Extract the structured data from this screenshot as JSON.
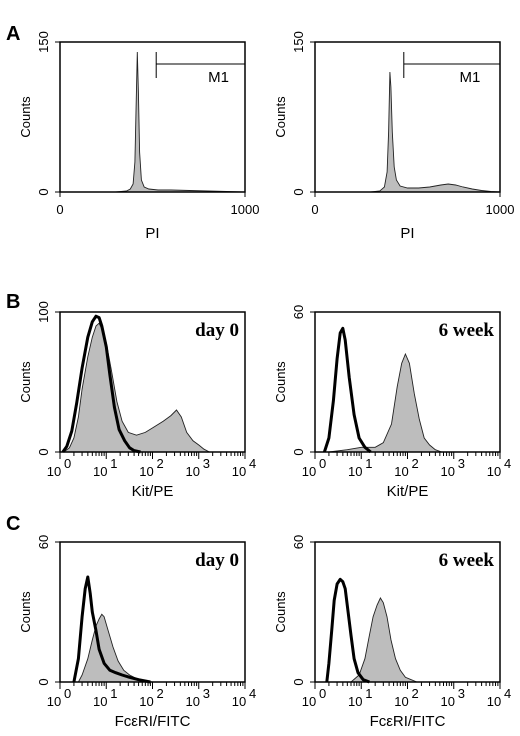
{
  "panel_letters": [
    "A",
    "B",
    "C"
  ],
  "chart_data": [
    {
      "id": "A1",
      "panel": "A",
      "type": "area",
      "xlabel": "PI",
      "ylabel": "Counts",
      "xscale": "linear",
      "xlim": [
        0,
        1000
      ],
      "ylim": [
        0,
        150
      ],
      "xticks": [
        "0",
        "1000"
      ],
      "yticks": [
        "0",
        "150"
      ],
      "gate": {
        "label": "M1",
        "x_start": 520,
        "x_end": 1000,
        "y": 128
      },
      "series": [
        {
          "style": "filled",
          "points": [
            [
              0,
              0
            ],
            [
              300,
              0
            ],
            [
              360,
              1
            ],
            [
              380,
              3
            ],
            [
              395,
              8
            ],
            [
              405,
              30
            ],
            [
              412,
              90
            ],
            [
              418,
              140
            ],
            [
              424,
              100
            ],
            [
              430,
              40
            ],
            [
              440,
              12
            ],
            [
              455,
              5
            ],
            [
              480,
              3
            ],
            [
              530,
              2
            ],
            [
              600,
              2
            ],
            [
              700,
              1.5
            ],
            [
              800,
              1
            ],
            [
              900,
              0.5
            ],
            [
              1000,
              0
            ]
          ]
        }
      ]
    },
    {
      "id": "A2",
      "panel": "A",
      "type": "area",
      "xlabel": "PI",
      "ylabel": "Counts",
      "xscale": "linear",
      "xlim": [
        0,
        1000
      ],
      "ylim": [
        0,
        150
      ],
      "xticks": [
        "0",
        "1000"
      ],
      "yticks": [
        "0",
        "150"
      ],
      "gate": {
        "label": "M1",
        "x_start": 480,
        "x_end": 1000,
        "y": 128
      },
      "series": [
        {
          "style": "filled",
          "points": [
            [
              0,
              0
            ],
            [
              300,
              0
            ],
            [
              350,
              1
            ],
            [
              375,
              5
            ],
            [
              390,
              20
            ],
            [
              398,
              60
            ],
            [
              405,
              120
            ],
            [
              410,
              105
            ],
            [
              418,
              60
            ],
            [
              428,
              25
            ],
            [
              440,
              12
            ],
            [
              460,
              6
            ],
            [
              500,
              4
            ],
            [
              560,
              4
            ],
            [
              620,
              5
            ],
            [
              680,
              7
            ],
            [
              720,
              8
            ],
            [
              760,
              7
            ],
            [
              800,
              5
            ],
            [
              850,
              3
            ],
            [
              900,
              1.5
            ],
            [
              950,
              0.5
            ],
            [
              1000,
              0
            ]
          ]
        }
      ]
    },
    {
      "id": "B1",
      "panel": "B",
      "type": "area",
      "xlabel": "Kit/PE",
      "ylabel": "Counts",
      "annotation": "day 0",
      "xscale": "log",
      "xlim": [
        1,
        10000
      ],
      "ylim": [
        0,
        100
      ],
      "xtick_bases": [
        "10",
        "10",
        "10",
        "10",
        "10"
      ],
      "xtick_exps": [
        "0",
        "1",
        "2",
        "3",
        "4"
      ],
      "yticks": [
        "0",
        "100"
      ],
      "series": [
        {
          "style": "filled",
          "points": [
            [
              1.2,
              0
            ],
            [
              1.6,
              3
            ],
            [
              2,
              10
            ],
            [
              2.5,
              25
            ],
            [
              3,
              45
            ],
            [
              4,
              68
            ],
            [
              5,
              82
            ],
            [
              6,
              90
            ],
            [
              7,
              92
            ],
            [
              8,
              88
            ],
            [
              10,
              78
            ],
            [
              13,
              58
            ],
            [
              17,
              36
            ],
            [
              22,
              22
            ],
            [
              30,
              14
            ],
            [
              45,
              12
            ],
            [
              70,
              14
            ],
            [
              110,
              18
            ],
            [
              170,
              22
            ],
            [
              250,
              26
            ],
            [
              330,
              30
            ],
            [
              420,
              25
            ],
            [
              550,
              14
            ],
            [
              750,
              8
            ],
            [
              1000,
              5
            ],
            [
              1300,
              2
            ],
            [
              1700,
              0
            ]
          ]
        },
        {
          "style": "outline",
          "points": [
            [
              1.15,
              0
            ],
            [
              1.4,
              4
            ],
            [
              1.8,
              15
            ],
            [
              2.3,
              35
            ],
            [
              3,
              60
            ],
            [
              4,
              82
            ],
            [
              5,
              93
            ],
            [
              6,
              97
            ],
            [
              7,
              96
            ],
            [
              8,
              90
            ],
            [
              10,
              75
            ],
            [
              12,
              55
            ],
            [
              15,
              32
            ],
            [
              19,
              16
            ],
            [
              25,
              8
            ],
            [
              32,
              3
            ],
            [
              40,
              1
            ],
            [
              55,
              0
            ]
          ]
        }
      ]
    },
    {
      "id": "B2",
      "panel": "B",
      "type": "area",
      "xlabel": "Kit/PE",
      "ylabel": "Counts",
      "annotation": "6 week",
      "xscale": "log",
      "xlim": [
        1,
        10000
      ],
      "ylim": [
        0,
        60
      ],
      "xtick_bases": [
        "10",
        "10",
        "10",
        "10",
        "10"
      ],
      "xtick_exps": [
        "0",
        "1",
        "2",
        "3",
        "4"
      ],
      "yticks": [
        "0",
        "60"
      ],
      "series": [
        {
          "style": "filled",
          "points": [
            [
              2,
              0
            ],
            [
              5,
              1
            ],
            [
              10,
              2
            ],
            [
              20,
              2
            ],
            [
              30,
              4
            ],
            [
              45,
              12
            ],
            [
              60,
              28
            ],
            [
              75,
              38
            ],
            [
              90,
              42
            ],
            [
              110,
              38
            ],
            [
              140,
              25
            ],
            [
              180,
              14
            ],
            [
              230,
              6
            ],
            [
              300,
              3
            ],
            [
              400,
              1
            ],
            [
              550,
              0
            ]
          ]
        },
        {
          "style": "outline",
          "points": [
            [
              1.6,
              0
            ],
            [
              2,
              6
            ],
            [
              2.5,
              22
            ],
            [
              3,
              40
            ],
            [
              3.5,
              51
            ],
            [
              4,
              53
            ],
            [
              4.5,
              48
            ],
            [
              5.5,
              32
            ],
            [
              7,
              16
            ],
            [
              9,
              6
            ],
            [
              12,
              2
            ],
            [
              16,
              0
            ]
          ]
        }
      ]
    },
    {
      "id": "C1",
      "panel": "C",
      "type": "area",
      "xlabel": "FcεRI/FITC",
      "ylabel": "Counts",
      "annotation": "day 0",
      "xscale": "log",
      "xlim": [
        1,
        10000
      ],
      "ylim": [
        0,
        60
      ],
      "xtick_bases": [
        "10",
        "10",
        "10",
        "10",
        "10"
      ],
      "xtick_exps": [
        "0",
        "1",
        "2",
        "3",
        "4"
      ],
      "yticks": [
        "0",
        "60"
      ],
      "series": [
        {
          "style": "filled",
          "points": [
            [
              2.5,
              0
            ],
            [
              3,
              3
            ],
            [
              4,
              10
            ],
            [
              5,
              18
            ],
            [
              6,
              24
            ],
            [
              7,
              27
            ],
            [
              8,
              29
            ],
            [
              9,
              28
            ],
            [
              11,
              22
            ],
            [
              14,
              15
            ],
            [
              18,
              9
            ],
            [
              24,
              5
            ],
            [
              32,
              3
            ],
            [
              45,
              1.5
            ],
            [
              65,
              0.5
            ],
            [
              100,
              0
            ]
          ]
        },
        {
          "style": "outline",
          "points": [
            [
              2,
              0
            ],
            [
              2.5,
              10
            ],
            [
              3,
              28
            ],
            [
              3.5,
              40
            ],
            [
              4,
              45
            ],
            [
              4.5,
              38
            ],
            [
              5,
              30
            ],
            [
              6,
              22
            ],
            [
              7,
              14
            ],
            [
              9,
              8
            ],
            [
              12,
              5
            ],
            [
              16,
              4
            ],
            [
              22,
              3
            ],
            [
              32,
              2
            ],
            [
              50,
              1
            ],
            [
              90,
              0
            ]
          ]
        }
      ]
    },
    {
      "id": "C2",
      "panel": "C",
      "type": "area",
      "xlabel": "FcεRI/FITC",
      "ylabel": "Counts",
      "annotation": "6 week",
      "xscale": "log",
      "xlim": [
        1,
        10000
      ],
      "ylim": [
        0,
        60
      ],
      "xtick_bases": [
        "10",
        "10",
        "10",
        "10",
        "10"
      ],
      "xtick_exps": [
        "0",
        "1",
        "2",
        "3",
        "4"
      ],
      "yticks": [
        "0",
        "60"
      ],
      "series": [
        {
          "style": "filled",
          "points": [
            [
              6,
              0
            ],
            [
              9,
              3
            ],
            [
              12,
              10
            ],
            [
              15,
              20
            ],
            [
              18,
              28
            ],
            [
              22,
              33
            ],
            [
              26,
              36
            ],
            [
              30,
              34
            ],
            [
              36,
              28
            ],
            [
              44,
              18
            ],
            [
              55,
              10
            ],
            [
              70,
              5
            ],
            [
              90,
              2
            ],
            [
              120,
              1
            ],
            [
              160,
              0
            ]
          ]
        },
        {
          "style": "outline",
          "points": [
            [
              1.8,
              0
            ],
            [
              2,
              8
            ],
            [
              2.3,
              22
            ],
            [
              2.6,
              35
            ],
            [
              3,
              42
            ],
            [
              3.5,
              44
            ],
            [
              4,
              43
            ],
            [
              4.5,
              40
            ],
            [
              5.2,
              30
            ],
            [
              6,
              20
            ],
            [
              7,
              10
            ],
            [
              8.5,
              4
            ],
            [
              11,
              1
            ],
            [
              15,
              0
            ]
          ]
        }
      ]
    }
  ]
}
